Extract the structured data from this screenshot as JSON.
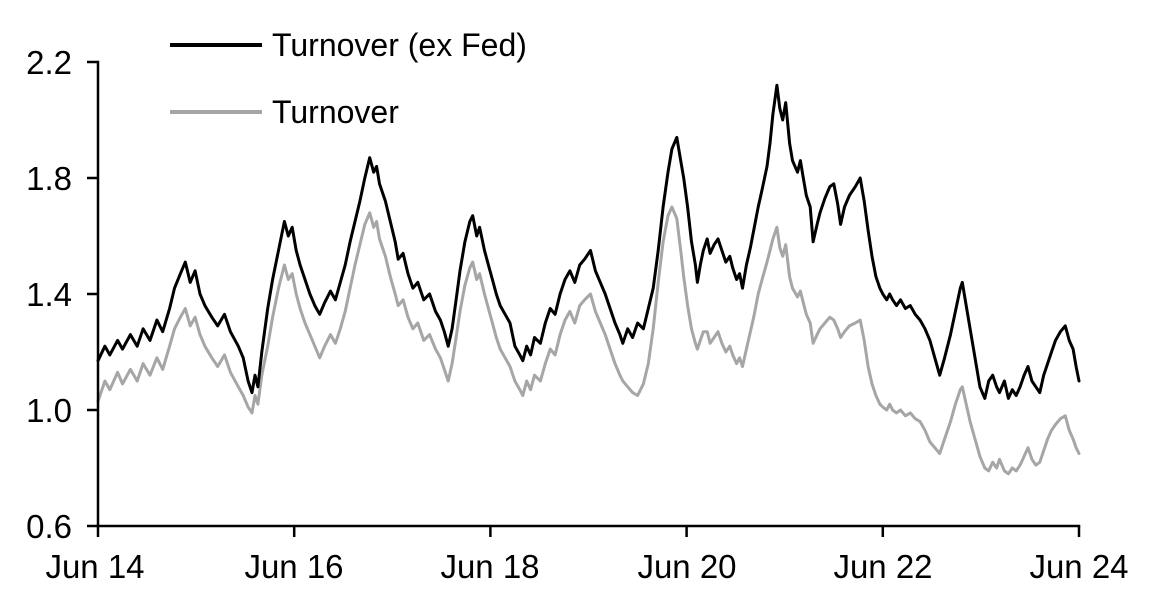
{
  "chart_data": {
    "type": "line",
    "title": "",
    "background_color": "#ffffff",
    "axis_color": "#000000",
    "grid": false,
    "legend_position": "top-left-inside",
    "legend": [
      {
        "label": "Turnover (ex Fed)",
        "color": "#000000"
      },
      {
        "label": "Turnover",
        "color": "#a6a6a6"
      }
    ],
    "x_axis": {
      "tick_labels": [
        "Jun 14",
        "Jun 16",
        "Jun 18",
        "Jun 20",
        "Jun 22",
        "Jun 24"
      ],
      "tick_years": [
        0,
        2,
        4,
        6,
        8,
        10
      ],
      "min_years": 0,
      "max_years": 10
    },
    "y_axis": {
      "tick_labels": [
        "0.6",
        "1.0",
        "1.4",
        "1.8",
        "2.2"
      ],
      "tick_values": [
        0.6,
        1.0,
        1.4,
        1.8,
        2.2
      ],
      "min": 0.6,
      "max": 2.2
    },
    "x": [
      0.0,
      0.07,
      0.12,
      0.2,
      0.25,
      0.33,
      0.4,
      0.46,
      0.53,
      0.6,
      0.66,
      0.73,
      0.78,
      0.84,
      0.89,
      0.94,
      0.99,
      1.04,
      1.09,
      1.16,
      1.22,
      1.29,
      1.35,
      1.43,
      1.48,
      1.53,
      1.57,
      1.6,
      1.63,
      1.67,
      1.73,
      1.78,
      1.84,
      1.9,
      1.94,
      1.98,
      2.02,
      2.06,
      2.11,
      2.16,
      2.21,
      2.26,
      2.31,
      2.37,
      2.42,
      2.47,
      2.52,
      2.57,
      2.62,
      2.67,
      2.72,
      2.77,
      2.81,
      2.84,
      2.87,
      2.93,
      2.98,
      3.03,
      3.06,
      3.11,
      3.16,
      3.21,
      3.26,
      3.32,
      3.38,
      3.44,
      3.49,
      3.53,
      3.57,
      3.61,
      3.65,
      3.69,
      3.74,
      3.79,
      3.82,
      3.86,
      3.89,
      3.94,
      3.98,
      4.02,
      4.06,
      4.1,
      4.15,
      4.2,
      4.25,
      4.3,
      4.33,
      4.37,
      4.41,
      4.45,
      4.51,
      4.56,
      4.61,
      4.66,
      4.71,
      4.76,
      4.81,
      4.86,
      4.91,
      4.96,
      5.02,
      5.07,
      5.12,
      5.17,
      5.22,
      5.27,
      5.32,
      5.35,
      5.4,
      5.45,
      5.5,
      5.56,
      5.61,
      5.66,
      5.71,
      5.76,
      5.81,
      5.85,
      5.9,
      5.94,
      5.97,
      6.01,
      6.05,
      6.09,
      6.11,
      6.14,
      6.17,
      6.21,
      6.24,
      6.28,
      6.32,
      6.36,
      6.4,
      6.44,
      6.47,
      6.51,
      6.54,
      6.57,
      6.61,
      6.65,
      6.69,
      6.73,
      6.77,
      6.82,
      6.85,
      6.88,
      6.92,
      6.95,
      6.98,
      7.01,
      7.05,
      7.08,
      7.13,
      7.16,
      7.19,
      7.22,
      7.26,
      7.29,
      7.33,
      7.36,
      7.41,
      7.46,
      7.5,
      7.54,
      7.57,
      7.61,
      7.66,
      7.72,
      7.77,
      7.81,
      7.85,
      7.89,
      7.93,
      7.97,
      8.0,
      8.04,
      8.07,
      8.1,
      8.14,
      8.18,
      8.23,
      8.28,
      8.33,
      8.38,
      8.43,
      8.48,
      8.53,
      8.58,
      8.63,
      8.69,
      8.74,
      8.79,
      8.81,
      8.85,
      8.89,
      8.94,
      8.99,
      9.04,
      9.08,
      9.12,
      9.16,
      9.19,
      9.24,
      9.28,
      9.32,
      9.36,
      9.4,
      9.44,
      9.48,
      9.52,
      9.56,
      9.6,
      9.64,
      9.68,
      9.72,
      9.76,
      9.81,
      9.86,
      9.9,
      9.94,
      9.97,
      10.0
    ],
    "series": [
      {
        "name": "Turnover (ex Fed)",
        "color": "#000000",
        "values": [
          1.17,
          1.22,
          1.19,
          1.24,
          1.21,
          1.26,
          1.22,
          1.28,
          1.24,
          1.31,
          1.27,
          1.35,
          1.42,
          1.47,
          1.51,
          1.44,
          1.48,
          1.4,
          1.36,
          1.32,
          1.29,
          1.33,
          1.27,
          1.22,
          1.18,
          1.1,
          1.06,
          1.12,
          1.08,
          1.2,
          1.35,
          1.45,
          1.55,
          1.65,
          1.6,
          1.63,
          1.55,
          1.5,
          1.45,
          1.4,
          1.36,
          1.33,
          1.37,
          1.41,
          1.38,
          1.44,
          1.5,
          1.58,
          1.65,
          1.72,
          1.8,
          1.87,
          1.82,
          1.84,
          1.78,
          1.72,
          1.65,
          1.58,
          1.52,
          1.54,
          1.47,
          1.42,
          1.44,
          1.38,
          1.4,
          1.34,
          1.31,
          1.27,
          1.22,
          1.28,
          1.38,
          1.48,
          1.58,
          1.65,
          1.67,
          1.6,
          1.63,
          1.55,
          1.5,
          1.45,
          1.4,
          1.36,
          1.33,
          1.3,
          1.22,
          1.19,
          1.17,
          1.22,
          1.19,
          1.25,
          1.23,
          1.3,
          1.35,
          1.33,
          1.4,
          1.45,
          1.48,
          1.44,
          1.5,
          1.52,
          1.55,
          1.48,
          1.44,
          1.4,
          1.35,
          1.3,
          1.26,
          1.23,
          1.28,
          1.25,
          1.3,
          1.28,
          1.35,
          1.42,
          1.55,
          1.7,
          1.82,
          1.9,
          1.94,
          1.86,
          1.8,
          1.7,
          1.58,
          1.5,
          1.44,
          1.5,
          1.55,
          1.59,
          1.54,
          1.57,
          1.59,
          1.55,
          1.51,
          1.53,
          1.49,
          1.45,
          1.47,
          1.42,
          1.5,
          1.56,
          1.63,
          1.7,
          1.76,
          1.84,
          1.92,
          2.02,
          2.12,
          2.04,
          2.0,
          2.06,
          1.92,
          1.86,
          1.82,
          1.86,
          1.8,
          1.74,
          1.7,
          1.58,
          1.64,
          1.68,
          1.73,
          1.77,
          1.78,
          1.71,
          1.64,
          1.7,
          1.74,
          1.77,
          1.8,
          1.72,
          1.62,
          1.53,
          1.46,
          1.42,
          1.4,
          1.38,
          1.4,
          1.38,
          1.36,
          1.38,
          1.35,
          1.36,
          1.33,
          1.31,
          1.28,
          1.24,
          1.18,
          1.12,
          1.18,
          1.26,
          1.34,
          1.42,
          1.44,
          1.36,
          1.28,
          1.18,
          1.08,
          1.04,
          1.1,
          1.12,
          1.08,
          1.06,
          1.1,
          1.04,
          1.07,
          1.05,
          1.08,
          1.12,
          1.15,
          1.1,
          1.08,
          1.06,
          1.12,
          1.16,
          1.2,
          1.24,
          1.27,
          1.29,
          1.24,
          1.21,
          1.15,
          1.1
        ]
      },
      {
        "name": "Turnover",
        "color": "#a6a6a6",
        "values": [
          1.03,
          1.1,
          1.07,
          1.13,
          1.09,
          1.14,
          1.1,
          1.16,
          1.12,
          1.18,
          1.14,
          1.22,
          1.28,
          1.32,
          1.35,
          1.29,
          1.32,
          1.26,
          1.22,
          1.18,
          1.15,
          1.19,
          1.13,
          1.08,
          1.05,
          1.01,
          0.99,
          1.05,
          1.02,
          1.12,
          1.22,
          1.32,
          1.42,
          1.5,
          1.45,
          1.47,
          1.4,
          1.35,
          1.3,
          1.26,
          1.22,
          1.18,
          1.22,
          1.26,
          1.23,
          1.28,
          1.34,
          1.42,
          1.5,
          1.57,
          1.64,
          1.68,
          1.63,
          1.65,
          1.59,
          1.53,
          1.46,
          1.4,
          1.36,
          1.38,
          1.32,
          1.28,
          1.3,
          1.24,
          1.26,
          1.21,
          1.18,
          1.14,
          1.1,
          1.16,
          1.25,
          1.34,
          1.43,
          1.49,
          1.51,
          1.45,
          1.47,
          1.4,
          1.35,
          1.3,
          1.25,
          1.21,
          1.18,
          1.15,
          1.1,
          1.07,
          1.05,
          1.1,
          1.07,
          1.12,
          1.1,
          1.16,
          1.21,
          1.19,
          1.26,
          1.31,
          1.34,
          1.3,
          1.36,
          1.38,
          1.4,
          1.34,
          1.3,
          1.26,
          1.21,
          1.16,
          1.12,
          1.1,
          1.08,
          1.06,
          1.05,
          1.09,
          1.16,
          1.28,
          1.44,
          1.58,
          1.67,
          1.7,
          1.66,
          1.55,
          1.46,
          1.36,
          1.28,
          1.23,
          1.21,
          1.24,
          1.27,
          1.27,
          1.23,
          1.25,
          1.27,
          1.23,
          1.2,
          1.22,
          1.19,
          1.16,
          1.18,
          1.15,
          1.21,
          1.27,
          1.33,
          1.4,
          1.45,
          1.51,
          1.55,
          1.59,
          1.63,
          1.56,
          1.53,
          1.57,
          1.46,
          1.42,
          1.39,
          1.41,
          1.37,
          1.33,
          1.3,
          1.23,
          1.26,
          1.28,
          1.3,
          1.32,
          1.31,
          1.28,
          1.25,
          1.27,
          1.29,
          1.3,
          1.31,
          1.24,
          1.15,
          1.09,
          1.05,
          1.02,
          1.01,
          1.0,
          1.02,
          1.0,
          0.99,
          1.0,
          0.98,
          0.99,
          0.97,
          0.96,
          0.93,
          0.89,
          0.87,
          0.85,
          0.9,
          0.96,
          1.02,
          1.07,
          1.08,
          1.02,
          0.96,
          0.9,
          0.84,
          0.8,
          0.79,
          0.82,
          0.8,
          0.83,
          0.79,
          0.78,
          0.8,
          0.79,
          0.81,
          0.84,
          0.87,
          0.83,
          0.81,
          0.82,
          0.86,
          0.9,
          0.93,
          0.95,
          0.97,
          0.98,
          0.93,
          0.9,
          0.87,
          0.85
        ]
      }
    ]
  }
}
